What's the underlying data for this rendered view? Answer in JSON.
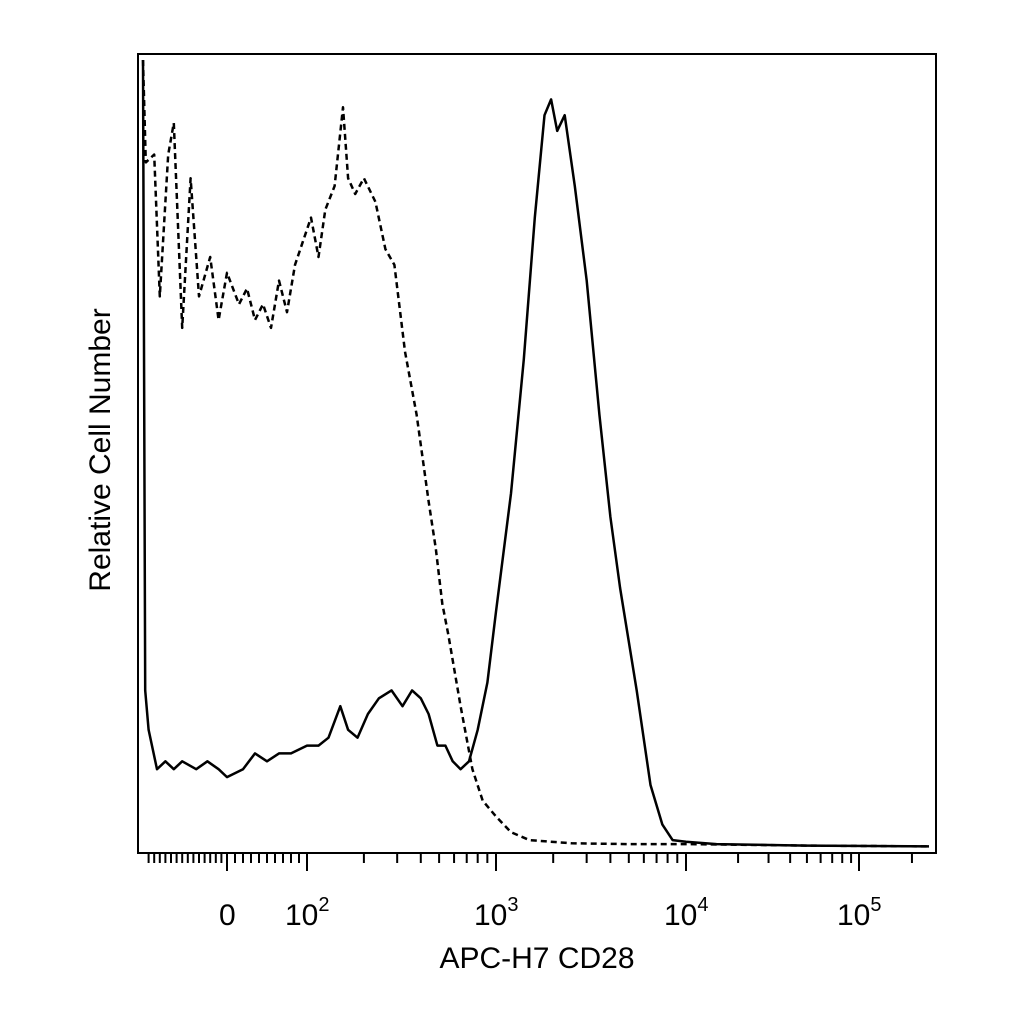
{
  "chart_data": {
    "type": "line",
    "title": "",
    "xlabel": "APC-H7 CD28",
    "ylabel": "Relative Cell Number",
    "xscale": "biexponential (linear near 0, log above ~10^2)",
    "xlim": [
      -150,
      250000
    ],
    "ylim": [
      0,
      1
    ],
    "grid": false,
    "legend": "none",
    "x_tick_labels": [
      {
        "label": "0",
        "base": "0",
        "exp": ""
      },
      {
        "label": "10^2",
        "base": "10",
        "exp": "2"
      },
      {
        "label": "10^3",
        "base": "10",
        "exp": "3"
      },
      {
        "label": "10^4",
        "base": "10",
        "exp": "4"
      },
      {
        "label": "10^5",
        "base": "10",
        "exp": "5"
      }
    ],
    "series": [
      {
        "style": "dashed",
        "color": "#000000",
        "points": [
          [
            -150,
            1.0
          ],
          [
            -145,
            0.87
          ],
          [
            -130,
            0.88
          ],
          [
            -120,
            0.7
          ],
          [
            -105,
            0.88
          ],
          [
            -95,
            0.92
          ],
          [
            -80,
            0.66
          ],
          [
            -65,
            0.85
          ],
          [
            -50,
            0.7
          ],
          [
            -30,
            0.75
          ],
          [
            -15,
            0.67
          ],
          [
            0,
            0.73
          ],
          [
            15,
            0.69
          ],
          [
            25,
            0.71
          ],
          [
            35,
            0.67
          ],
          [
            45,
            0.69
          ],
          [
            55,
            0.66
          ],
          [
            65,
            0.72
          ],
          [
            75,
            0.68
          ],
          [
            85,
            0.74
          ],
          [
            95,
            0.77
          ],
          [
            105,
            0.8
          ],
          [
            115,
            0.75
          ],
          [
            125,
            0.81
          ],
          [
            140,
            0.84
          ],
          [
            155,
            0.94
          ],
          [
            165,
            0.85
          ],
          [
            180,
            0.83
          ],
          [
            200,
            0.85
          ],
          [
            230,
            0.82
          ],
          [
            260,
            0.76
          ],
          [
            290,
            0.74
          ],
          [
            330,
            0.63
          ],
          [
            380,
            0.55
          ],
          [
            440,
            0.44
          ],
          [
            480,
            0.38
          ],
          [
            520,
            0.31
          ],
          [
            560,
            0.27
          ],
          [
            650,
            0.18
          ],
          [
            750,
            0.1
          ],
          [
            850,
            0.06
          ],
          [
            1000,
            0.04
          ],
          [
            1200,
            0.02
          ],
          [
            1500,
            0.01
          ],
          [
            2500,
            0.006
          ],
          [
            5000,
            0.005
          ],
          [
            10000,
            0.005
          ],
          [
            50000,
            0.003
          ],
          [
            250000,
            0.002
          ]
        ]
      },
      {
        "style": "solid",
        "color": "#000000",
        "points": [
          [
            -150,
            1.0
          ],
          [
            -146,
            0.2
          ],
          [
            -140,
            0.15
          ],
          [
            -125,
            0.1
          ],
          [
            -110,
            0.11
          ],
          [
            -95,
            0.1
          ],
          [
            -80,
            0.11
          ],
          [
            -55,
            0.1
          ],
          [
            -35,
            0.11
          ],
          [
            -15,
            0.1
          ],
          [
            0,
            0.09
          ],
          [
            20,
            0.1
          ],
          [
            35,
            0.12
          ],
          [
            50,
            0.11
          ],
          [
            65,
            0.12
          ],
          [
            80,
            0.12
          ],
          [
            100,
            0.13
          ],
          [
            115,
            0.13
          ],
          [
            130,
            0.14
          ],
          [
            150,
            0.18
          ],
          [
            165,
            0.15
          ],
          [
            185,
            0.14
          ],
          [
            210,
            0.17
          ],
          [
            240,
            0.19
          ],
          [
            280,
            0.2
          ],
          [
            320,
            0.18
          ],
          [
            360,
            0.2
          ],
          [
            400,
            0.19
          ],
          [
            440,
            0.17
          ],
          [
            490,
            0.13
          ],
          [
            540,
            0.13
          ],
          [
            590,
            0.11
          ],
          [
            650,
            0.1
          ],
          [
            720,
            0.11
          ],
          [
            800,
            0.15
          ],
          [
            900,
            0.21
          ],
          [
            1000,
            0.3
          ],
          [
            1200,
            0.45
          ],
          [
            1400,
            0.62
          ],
          [
            1600,
            0.8
          ],
          [
            1800,
            0.93
          ],
          [
            1950,
            0.95
          ],
          [
            2100,
            0.91
          ],
          [
            2300,
            0.93
          ],
          [
            2600,
            0.84
          ],
          [
            3000,
            0.72
          ],
          [
            3500,
            0.55
          ],
          [
            4000,
            0.42
          ],
          [
            4500,
            0.33
          ],
          [
            5500,
            0.2
          ],
          [
            6500,
            0.08
          ],
          [
            7500,
            0.03
          ],
          [
            8500,
            0.01
          ],
          [
            10000,
            0.008
          ],
          [
            15000,
            0.005
          ],
          [
            50000,
            0.003
          ],
          [
            250000,
            0.002
          ]
        ]
      }
    ]
  }
}
